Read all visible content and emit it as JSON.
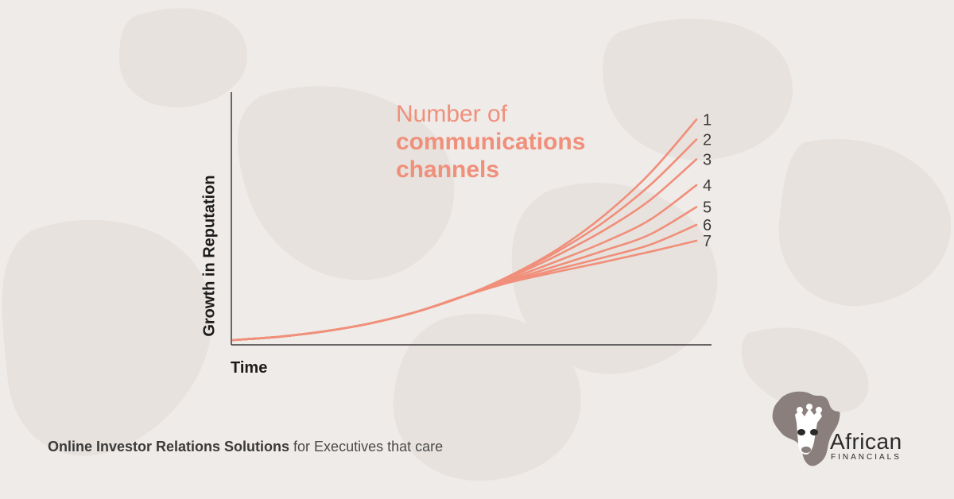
{
  "chart_data": {
    "type": "line",
    "xlabel": "Time",
    "ylabel": "Growth in Reputation",
    "legend_title": [
      "Number of",
      "communications",
      "channels"
    ],
    "x": [
      0,
      10,
      20,
      30,
      40,
      50,
      60,
      70,
      80,
      90,
      100
    ],
    "series": [
      {
        "name": "1",
        "values": [
          0,
          1.7,
          4.5,
          8.6,
          14.5,
          22.3,
          32.7,
          45.7,
          62.6,
          84.0,
          111.0
        ]
      },
      {
        "name": "2",
        "values": [
          0,
          1.7,
          4.5,
          8.6,
          14.5,
          22.3,
          32.4,
          44.6,
          59.4,
          78.0,
          101.0
        ]
      },
      {
        "name": "3",
        "values": [
          0,
          1.7,
          4.5,
          8.6,
          14.5,
          22.3,
          31.9,
          42.7,
          55.2,
          70.5,
          91.0
        ]
      },
      {
        "name": "4",
        "values": [
          0,
          1.7,
          4.5,
          8.6,
          14.5,
          22.3,
          31.0,
          39.8,
          49.2,
          60.6,
          78.0
        ]
      },
      {
        "name": "5",
        "values": [
          0,
          1.7,
          4.5,
          8.6,
          14.5,
          22.3,
          30.2,
          37.5,
          45.0,
          53.2,
          67.0
        ]
      },
      {
        "name": "6",
        "values": [
          0,
          1.7,
          4.5,
          8.6,
          14.5,
          22.3,
          29.6,
          35.7,
          41.6,
          48.0,
          58.0
        ]
      },
      {
        "name": "7",
        "values": [
          0,
          1.7,
          4.5,
          8.6,
          14.5,
          22.3,
          29.2,
          34.4,
          39.3,
          44.5,
          50.0
        ]
      }
    ],
    "grid": false,
    "legend": "right",
    "colors": {
      "line": "#f08f7a",
      "axis": "#3b3b3b"
    }
  },
  "footer": {
    "bold": "Online Investor Relations Solutions",
    "rest": " for Executives that care"
  },
  "brand": {
    "name": "African",
    "sub": "FINANCIALS",
    "logo_icon": "giraffe-africa-icon"
  },
  "colors": {
    "background": "#efebe8",
    "accent": "#f08f7a",
    "text": "#1b1b1b"
  }
}
